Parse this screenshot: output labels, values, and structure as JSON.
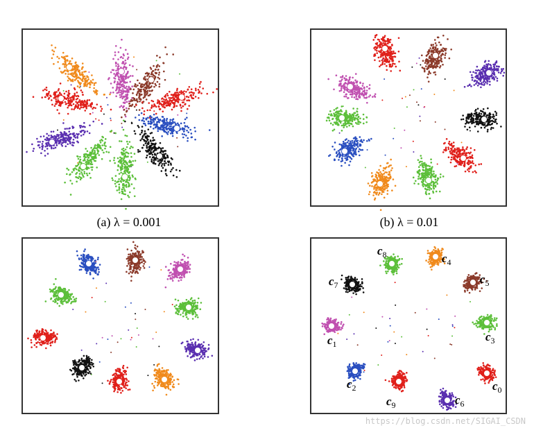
{
  "figure": {
    "captions": [
      "(a) λ = 0.001",
      "(b) λ = 0.01"
    ],
    "cluster_labels": [
      {
        "base": "c",
        "sub": "0"
      },
      {
        "base": "c",
        "sub": "1"
      },
      {
        "base": "c",
        "sub": "2"
      },
      {
        "base": "c",
        "sub": "3"
      },
      {
        "base": "c",
        "sub": "4"
      },
      {
        "base": "c",
        "sub": "5"
      },
      {
        "base": "c",
        "sub": "6"
      },
      {
        "base": "c",
        "sub": "7"
      },
      {
        "base": "c",
        "sub": "8"
      },
      {
        "base": "c",
        "sub": "9"
      }
    ],
    "watermark": "https://blog.csdn.net/SIGAI_CSDN"
  }
}
